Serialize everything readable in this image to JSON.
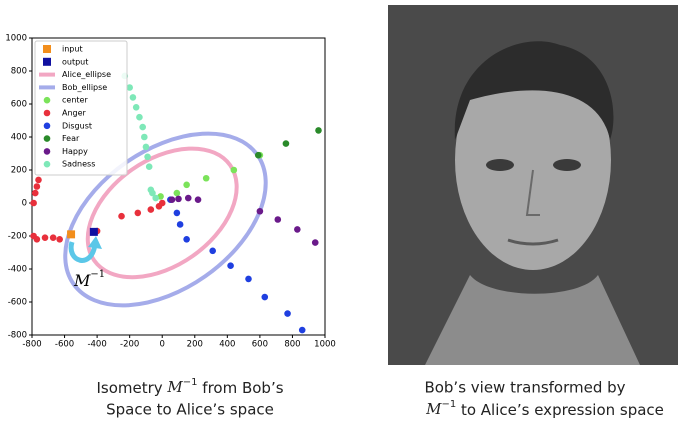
{
  "chart_data": {
    "type": "scatter",
    "xlim": [
      -800,
      1000
    ],
    "ylim": [
      -800,
      1000
    ],
    "xticks": [
      -800,
      -600,
      -400,
      -200,
      0,
      200,
      400,
      600,
      800,
      1000
    ],
    "yticks": [
      -800,
      -600,
      -400,
      -200,
      0,
      200,
      400,
      600,
      800,
      1000
    ],
    "series": [
      {
        "name": "input",
        "color": "#f28e1c",
        "marker": "square",
        "x": [
          -560
        ],
        "y": [
          -190
        ]
      },
      {
        "name": "output",
        "color": "#1010a0",
        "marker": "square",
        "x": [
          -420
        ],
        "y": [
          -175
        ]
      },
      {
        "name": "Alice_ellipse",
        "color": "#f2a7c3",
        "marker": "ellipse",
        "cx": 0,
        "cy": -60,
        "rx": 510,
        "ry": 320,
        "angle": 35
      },
      {
        "name": "Bob_ellipse",
        "color": "#a5acea",
        "marker": "ellipse",
        "cx": 20,
        "cy": -100,
        "rx": 690,
        "ry": 420,
        "angle": 35
      },
      {
        "name": "center",
        "color": "#7be35a",
        "marker": "circle",
        "x": [
          -10,
          90,
          150,
          270,
          440,
          600
        ],
        "y": [
          40,
          60,
          110,
          150,
          200,
          290
        ]
      },
      {
        "name": "Anger",
        "color": "#e8303c",
        "marker": "circle",
        "x": [
          -790,
          -770,
          -720,
          -670,
          -630,
          -790,
          -780,
          -770,
          -760,
          -400,
          -250,
          -150,
          -70,
          -20,
          0
        ],
        "y": [
          -200,
          -220,
          -210,
          -210,
          -220,
          0,
          60,
          100,
          140,
          -170,
          -80,
          -60,
          -40,
          -20,
          0
        ]
      },
      {
        "name": "Disgust",
        "color": "#1f3fe0",
        "marker": "circle",
        "x": [
          50,
          90,
          110,
          150,
          310,
          420,
          530,
          630,
          770,
          860
        ],
        "y": [
          20,
          -60,
          -130,
          -220,
          -290,
          -380,
          -460,
          -570,
          -670,
          -770
        ]
      },
      {
        "name": "Fear",
        "color": "#2a8a2a",
        "marker": "circle",
        "x": [
          960,
          760,
          590
        ],
        "y": [
          440,
          360,
          290
        ]
      },
      {
        "name": "Happy",
        "color": "#6a1a8a",
        "marker": "circle",
        "x": [
          60,
          100,
          160,
          220,
          600,
          710,
          830,
          940
        ],
        "y": [
          20,
          25,
          30,
          20,
          -50,
          -100,
          -160,
          -240
        ]
      },
      {
        "name": "Sadness",
        "color": "#7ee8b8",
        "marker": "circle",
        "x": [
          -230,
          -200,
          -180,
          -160,
          -140,
          -120,
          -110,
          -100,
          -90,
          -80,
          -70,
          -60,
          -40
        ],
        "y": [
          770,
          700,
          640,
          580,
          520,
          460,
          400,
          340,
          280,
          220,
          80,
          60,
          30
        ]
      }
    ],
    "annotation": {
      "math": "M",
      "sup": "−1"
    }
  },
  "captions": {
    "left": {
      "before": "Isometry ",
      "math": "M",
      "sup": "−1",
      "after": " from Bob’s",
      "line2": "Space to Alice’s space"
    },
    "right": {
      "line1": "Bob’s view transformed by",
      "math": "M",
      "sup": "−1",
      "after": " to Alice’s expression space"
    }
  }
}
